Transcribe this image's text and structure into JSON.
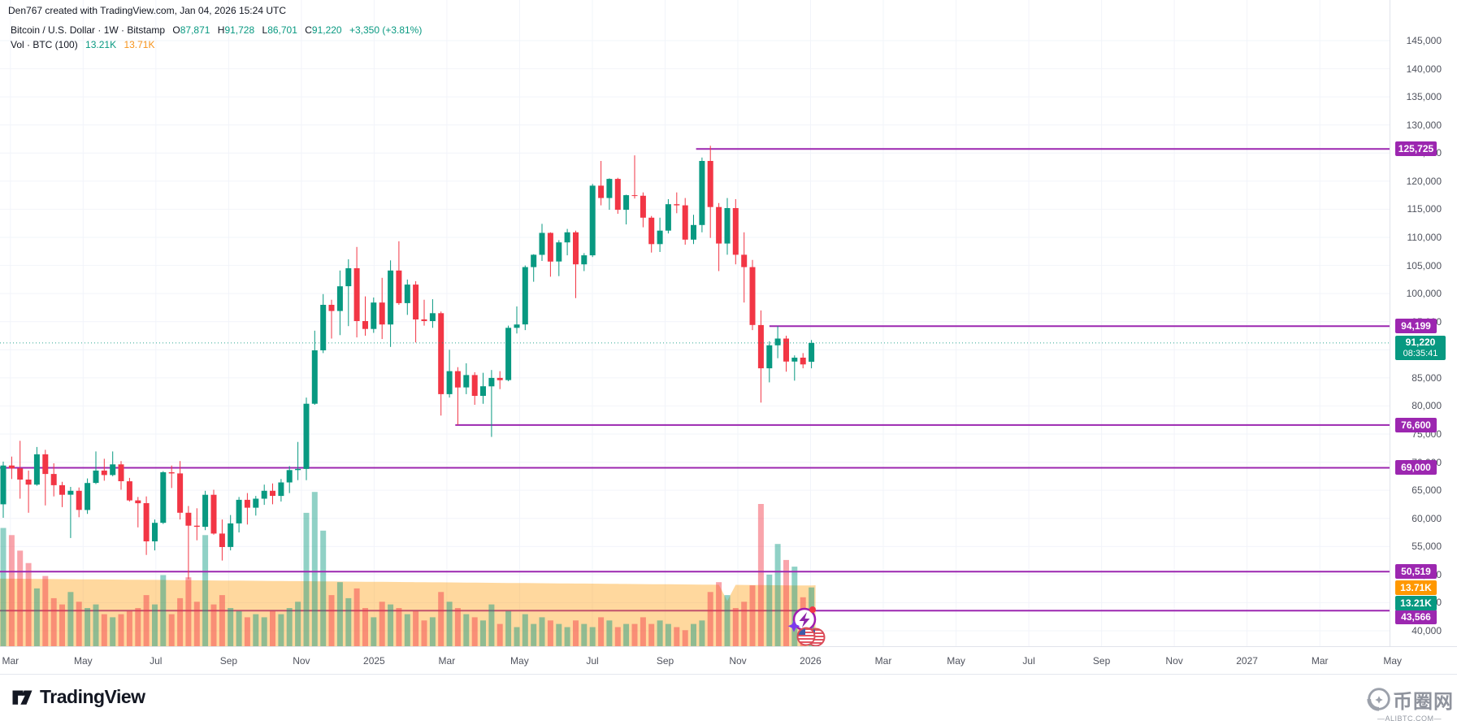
{
  "header": {
    "attribution": "Den767 created with TradingView.com, Jan 04, 2026 15:24 UTC",
    "symbol_line": {
      "title": "Bitcoin / U.S. Dollar · 1W · Bitstamp",
      "open_label": "O",
      "open": "87,871",
      "high_label": "H",
      "high": "91,728",
      "low_label": "L",
      "low": "86,701",
      "close_label": "C",
      "close": "91,220",
      "change": "+3,350 (+3.81%)"
    },
    "volume_line": {
      "title": "Vol · BTC (100)",
      "current": "13.21K",
      "ma": "13.71K"
    }
  },
  "footer": {
    "logo_text": "TradingView",
    "watermark_title": "币圈网",
    "watermark_subtitle": "—ALIBTC.COM—"
  },
  "colors": {
    "up": "#089981",
    "down": "#f23645",
    "purple": "#9c27b0",
    "orange": "#ff9800",
    "grid": "#f2f4fa",
    "axis_text": "#50535e",
    "text": "#131722"
  },
  "price_scale": {
    "min": 40000,
    "max": 145000,
    "step": 5000,
    "current": {
      "text": "91,220",
      "countdown": "08:35:41",
      "value": 91220
    },
    "volume_labels": [
      {
        "text": "13.71K",
        "color": "#ff9800",
        "y": 723
      },
      {
        "text": "13.21K",
        "color": "#089981",
        "y": 742
      }
    ]
  },
  "time_scale": {
    "labels": [
      "Mar",
      "May",
      "Jul",
      "Sep",
      "Nov",
      "2025",
      "Mar",
      "May",
      "Jul",
      "Sep",
      "Nov",
      "2026",
      "Mar",
      "May",
      "Jul",
      "Sep",
      "Nov",
      "2027",
      "Mar",
      "May"
    ]
  },
  "chart_data": {
    "type": "candlestick_with_volume",
    "symbol": "Bitcoin / U.S. Dollar",
    "interval": "1W",
    "exchange": "Bitstamp",
    "ylim": [
      40000,
      145000
    ],
    "x_start_week": "2024-02-26",
    "candles_ohlcv": [
      [
        62500,
        70100,
        60100,
        69400,
        26.6
      ],
      [
        69400,
        71000,
        67000,
        68900,
        25
      ],
      [
        68900,
        73800,
        63500,
        66900,
        21.5
      ],
      [
        66900,
        68500,
        61000,
        66000,
        18.7
      ],
      [
        66000,
        72700,
        65800,
        71400,
        13
      ],
      [
        71400,
        72200,
        62300,
        67900,
        15.8
      ],
      [
        67900,
        69800,
        63900,
        65900,
        10.8
      ],
      [
        65900,
        66500,
        62000,
        64200,
        9.4
      ],
      [
        64200,
        65600,
        56500,
        64900,
        12.2
      ],
      [
        64900,
        65500,
        60200,
        61500,
        10
      ],
      [
        61500,
        67100,
        60800,
        66300,
        8.6
      ],
      [
        66300,
        71900,
        66100,
        68500,
        9.4
      ],
      [
        68500,
        70600,
        66700,
        67700,
        7.2
      ],
      [
        67700,
        71900,
        67500,
        69600,
        6.5
      ],
      [
        69600,
        70200,
        65100,
        66600,
        7.2
      ],
      [
        66600,
        67200,
        63000,
        63200,
        7.9
      ],
      [
        63200,
        63800,
        58400,
        62700,
        8.6
      ],
      [
        62700,
        63900,
        53500,
        55900,
        11.5
      ],
      [
        55900,
        59800,
        54300,
        59200,
        9.4
      ],
      [
        59200,
        68400,
        59000,
        68200,
        16
      ],
      [
        68200,
        69400,
        65400,
        68000,
        7.2
      ],
      [
        68000,
        70200,
        59800,
        61000,
        10.8
      ],
      [
        61000,
        62200,
        49200,
        58700,
        15.5
      ],
      [
        58700,
        61800,
        56100,
        58500,
        10
      ],
      [
        58500,
        64900,
        57900,
        64200,
        25
      ],
      [
        64200,
        65100,
        57100,
        57300,
        9.4
      ],
      [
        57300,
        59800,
        52500,
        54900,
        11.5
      ],
      [
        54900,
        60600,
        54300,
        59100,
        8.6
      ],
      [
        59100,
        63800,
        57500,
        63300,
        7.9
      ],
      [
        63300,
        64500,
        58900,
        61900,
        6.5
      ],
      [
        61900,
        64000,
        60500,
        63500,
        7.2
      ],
      [
        63500,
        66000,
        62400,
        64900,
        6.5
      ],
      [
        64900,
        66200,
        62500,
        64000,
        7.9
      ],
      [
        64000,
        67000,
        63000,
        66400,
        7.2
      ],
      [
        66400,
        69300,
        64500,
        68600,
        8.6
      ],
      [
        68600,
        73600,
        66800,
        68800,
        10
      ],
      [
        68800,
        81500,
        66800,
        80400,
        30
      ],
      [
        80400,
        93400,
        80200,
        89900,
        34.7
      ],
      [
        89900,
        99900,
        89400,
        98000,
        26
      ],
      [
        98000,
        98900,
        92000,
        96900,
        11.5
      ],
      [
        96900,
        104100,
        92600,
        101300,
        14.4
      ],
      [
        101300,
        106100,
        94200,
        104500,
        10.8
      ],
      [
        104500,
        108300,
        92200,
        95100,
        13
      ],
      [
        95100,
        99500,
        92500,
        93700,
        8.6
      ],
      [
        93700,
        99300,
        93000,
        98400,
        6.5
      ],
      [
        98400,
        102800,
        91900,
        94500,
        10
      ],
      [
        94500,
        105900,
        90500,
        104100,
        9.4
      ],
      [
        104100,
        109300,
        98000,
        98300,
        8.6
      ],
      [
        98300,
        102500,
        96200,
        101600,
        7.2
      ],
      [
        101600,
        102200,
        91300,
        95400,
        7.9
      ],
      [
        95400,
        98900,
        94300,
        95100,
        5.8
      ],
      [
        95100,
        99000,
        93900,
        96500,
        6.5
      ],
      [
        96500,
        96800,
        78300,
        82100,
        12.2
      ],
      [
        82100,
        90000,
        81500,
        86200,
        10
      ],
      [
        86200,
        86900,
        76600,
        83300,
        8.6
      ],
      [
        83300,
        87600,
        82100,
        85500,
        7.2
      ],
      [
        85500,
        86000,
        80200,
        81800,
        6.5
      ],
      [
        81800,
        85900,
        80400,
        83500,
        5.8
      ],
      [
        83500,
        86400,
        74500,
        85000,
        9.4
      ],
      [
        85000,
        86200,
        83000,
        84600,
        5
      ],
      [
        84600,
        94300,
        84400,
        93900,
        7.9
      ],
      [
        93900,
        97700,
        92900,
        94500,
        4.3
      ],
      [
        94500,
        105000,
        93500,
        104700,
        7.2
      ],
      [
        104700,
        107000,
        102100,
        106900,
        5
      ],
      [
        106900,
        112400,
        105800,
        110800,
        6.5
      ],
      [
        110800,
        110900,
        103000,
        105700,
        5.8
      ],
      [
        105700,
        109500,
        103100,
        109100,
        5
      ],
      [
        109100,
        111500,
        106800,
        110900,
        4.3
      ],
      [
        110900,
        111200,
        99200,
        105200,
        5.8
      ],
      [
        105200,
        107200,
        104000,
        106800,
        5
      ],
      [
        106800,
        119500,
        106500,
        119200,
        4.3
      ],
      [
        119200,
        123600,
        115700,
        117000,
        6.5
      ],
      [
        117000,
        120500,
        114900,
        120400,
        5.8
      ],
      [
        120400,
        120600,
        114200,
        114900,
        4.3
      ],
      [
        114900,
        117600,
        112300,
        117500,
        5
      ],
      [
        117500,
        124600,
        116900,
        117400,
        5
      ],
      [
        117400,
        118000,
        111800,
        113500,
        6.5
      ],
      [
        113500,
        113800,
        107300,
        108800,
        5
      ],
      [
        108800,
        113500,
        107400,
        111200,
        5.8
      ],
      [
        111200,
        116800,
        110700,
        115900,
        5
      ],
      [
        115900,
        118000,
        114300,
        115700,
        4.3
      ],
      [
        115700,
        117000,
        108700,
        109600,
        3.6
      ],
      [
        109600,
        114000,
        108800,
        112200,
        5
      ],
      [
        112200,
        124200,
        110900,
        123600,
        5.8
      ],
      [
        123600,
        126296,
        109900,
        115400,
        12.2
      ],
      [
        115400,
        116100,
        104000,
        108900,
        14.4
      ],
      [
        108900,
        117000,
        106900,
        115200,
        11.5
      ],
      [
        115200,
        116800,
        105200,
        106900,
        8.6
      ],
      [
        106900,
        110900,
        98400,
        104700,
        10
      ],
      [
        104700,
        106000,
        93500,
        94400,
        13.7
      ],
      [
        94400,
        97000,
        80600,
        86700,
        32
      ],
      [
        86700,
        91500,
        84200,
        90800,
        16.1
      ],
      [
        90800,
        94199,
        88500,
        92000,
        23
      ],
      [
        92000,
        92500,
        86100,
        87900,
        19.4
      ],
      [
        87900,
        89000,
        84500,
        88600,
        17.9
      ],
      [
        88600,
        89400,
        86700,
        87400,
        11
      ],
      [
        87871,
        91728,
        86701,
        91220,
        13.21
      ]
    ],
    "volume_ma_value": 13.71,
    "current_volume": 13.21,
    "levels": [
      {
        "price": 125725,
        "label": "125,725",
        "from_index": 82.3,
        "behind_volume": false
      },
      {
        "price": 94199,
        "label": "94,199",
        "from_index": 91,
        "behind_volume": false
      },
      {
        "price": 76600,
        "label": "76,600",
        "from_index": 53.7,
        "behind_volume": false
      },
      {
        "price": 69000,
        "label": "69,000",
        "from_index": -1,
        "behind_volume": false
      },
      {
        "price": 50519,
        "label": "50,519",
        "from_index": -1,
        "behind_volume": false
      },
      {
        "price": 43566,
        "label": "43,566",
        "from_index": -1,
        "behind_volume": true
      }
    ],
    "stickers": [
      {
        "name": "lightning-circle-emoji",
        "x": 990,
        "y": 762
      },
      {
        "name": "us-flag-pair-emoji",
        "x": 997,
        "y": 783
      }
    ]
  }
}
